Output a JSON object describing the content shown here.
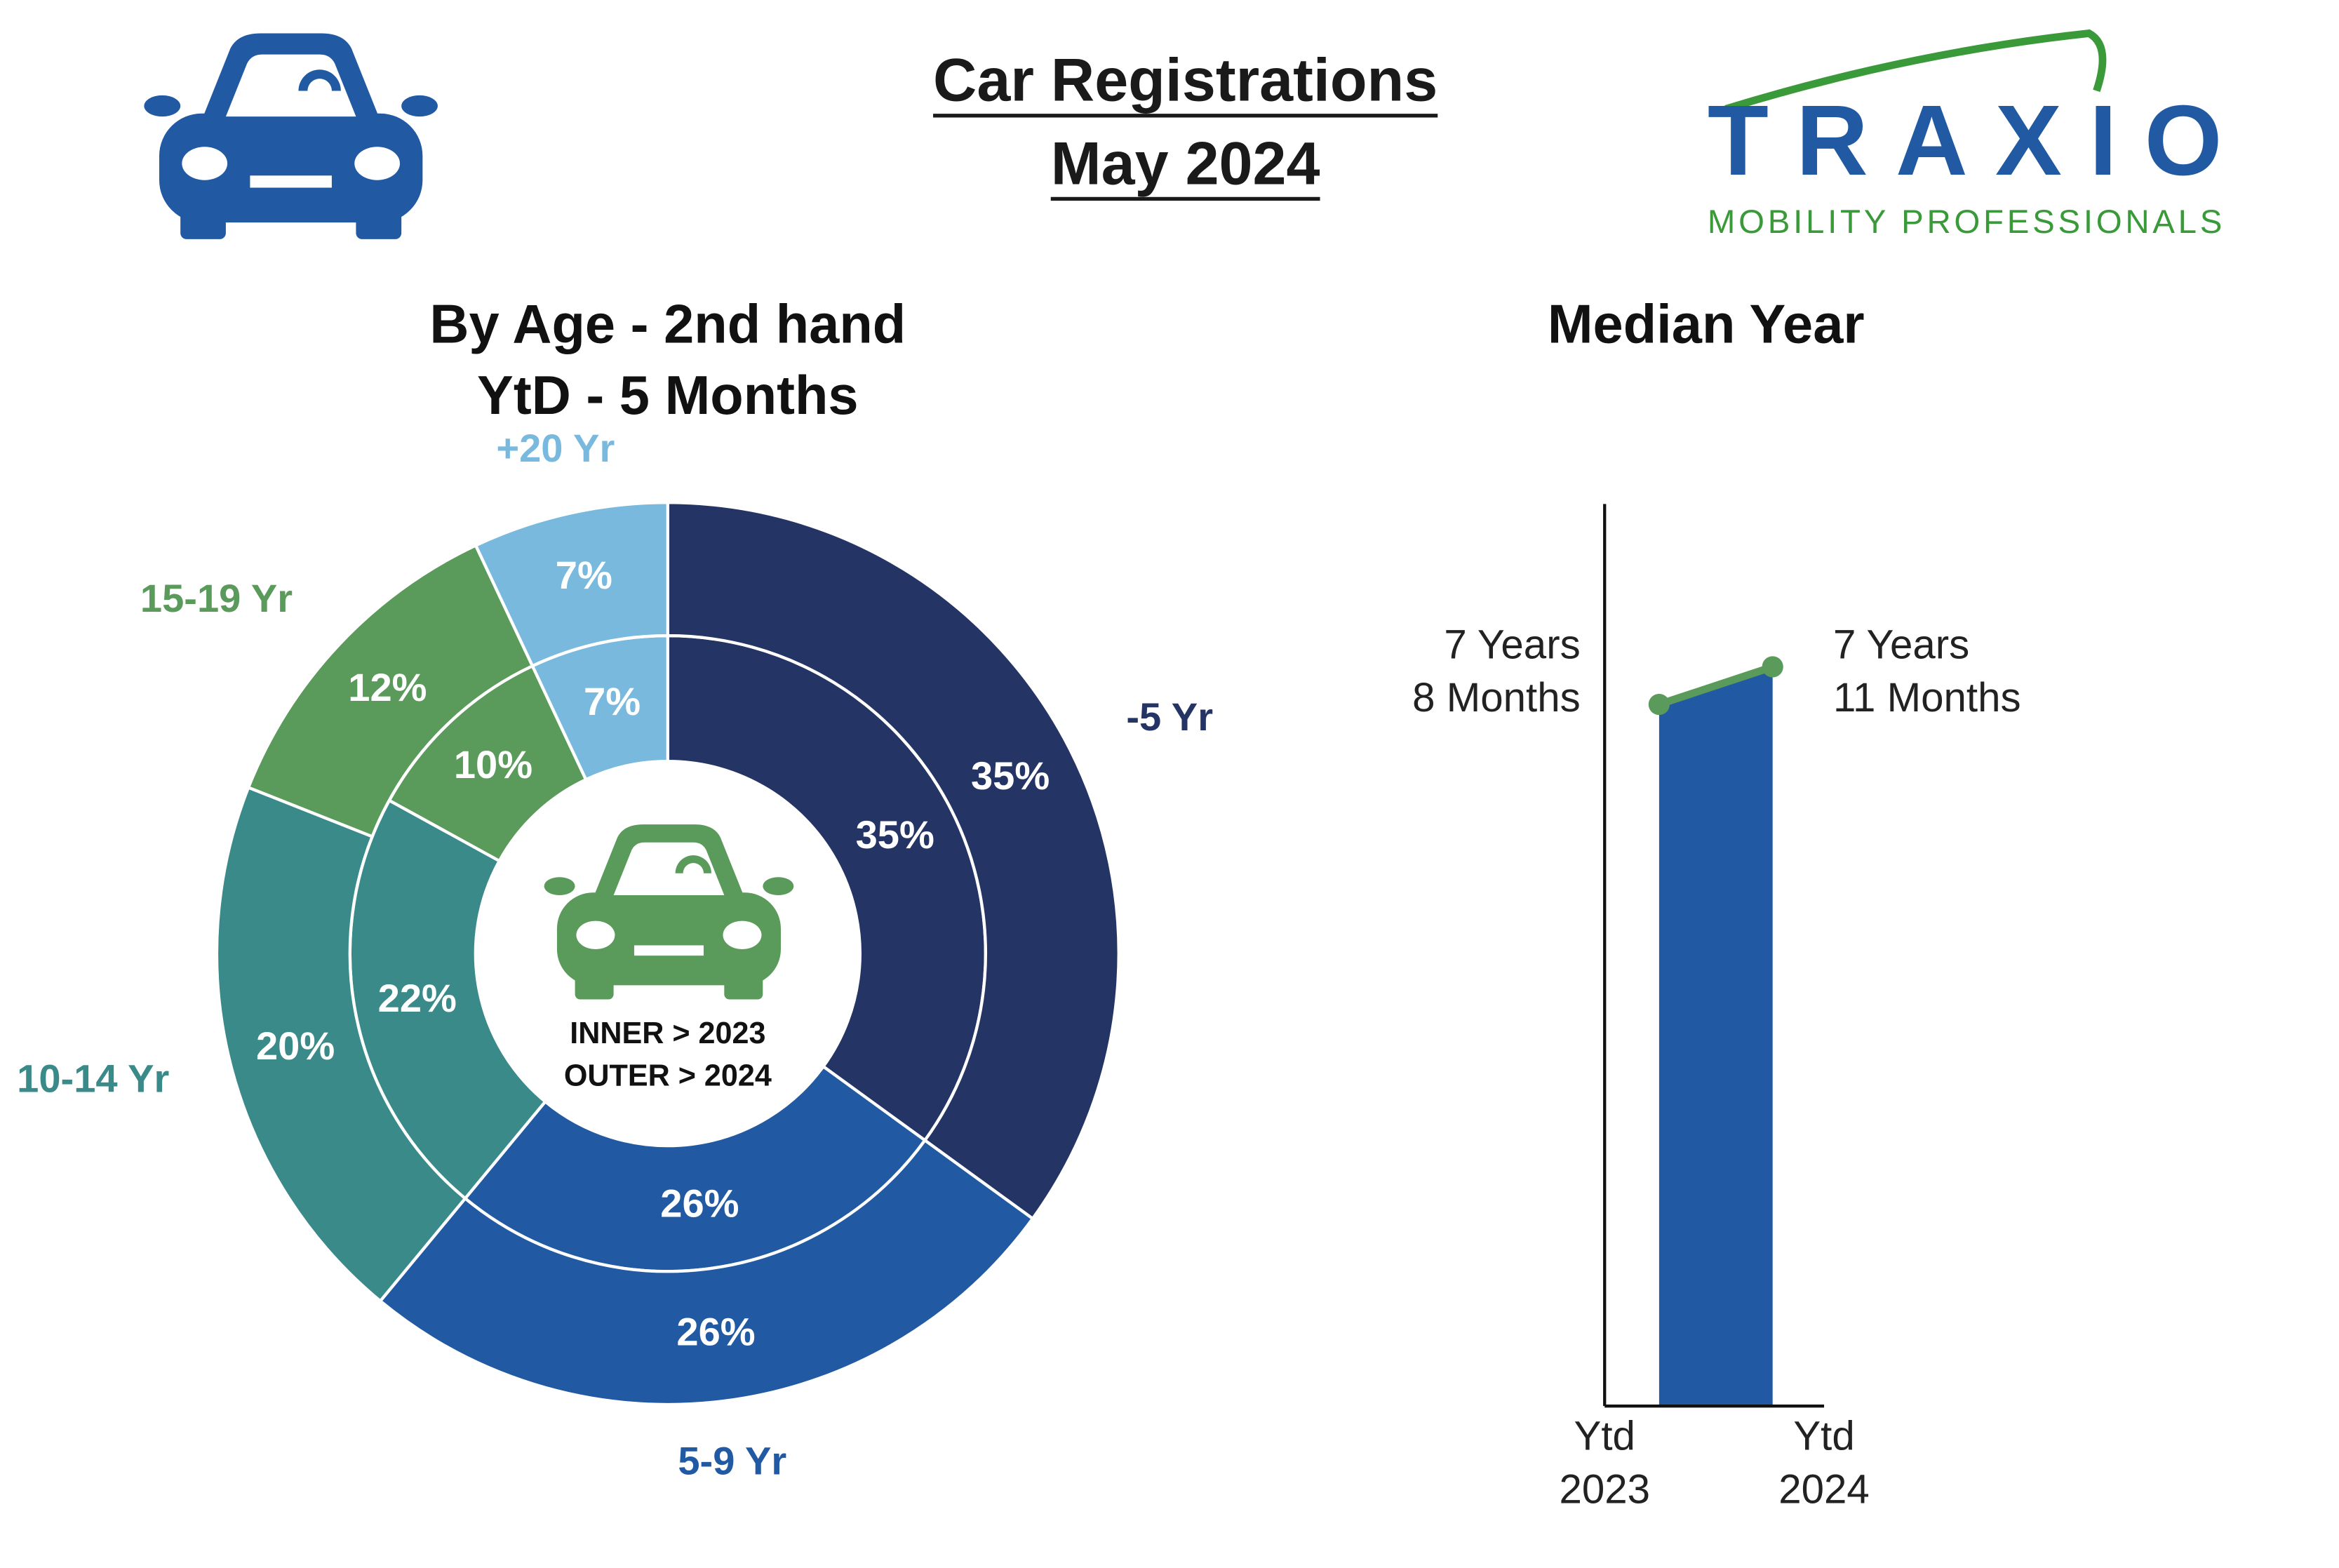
{
  "header": {
    "title": "Car Registrations",
    "subtitle": "May 2024"
  },
  "logo": {
    "name": "TRAXIO",
    "tagline": "MOBILITY PROFESSIONALS"
  },
  "chart_data": [
    {
      "type": "donut",
      "title": "By Age - 2nd hand",
      "subtitle": "YtD - 5 Months",
      "categories": [
        "-5 Yr",
        "5-9 Yr",
        "10-14 Yr",
        "15-19 Yr",
        "+20 Yr"
      ],
      "colors": [
        "#243464",
        "#2159a3",
        "#3b8a8a",
        "#5a9a5a",
        "#7ab9de"
      ],
      "series": [
        {
          "values": [
            35,
            26,
            22,
            10,
            7
          ],
          "value_labels": [
            "35%",
            "26%",
            "22%",
            "10%",
            "7%"
          ]
        },
        {
          "values": [
            35,
            26,
            20,
            12,
            7
          ],
          "value_labels": [
            "35%",
            "26%",
            "20%",
            "12%",
            "7%"
          ]
        }
      ],
      "annotations": [
        "INNER > 2023",
        "OUTER > 2024"
      ]
    },
    {
      "type": "area",
      "title": "Median Year",
      "categories": [
        "Ytd\n2023",
        "Ytd\n2024"
      ],
      "values": [
        7.667,
        7.917
      ],
      "value_labels": [
        "7 Years\n8 Months",
        "7 Years\n11 Months"
      ],
      "ylim": [
        3,
        9
      ],
      "color": "#2159a3",
      "line_color": "#5a9a5a"
    }
  ]
}
